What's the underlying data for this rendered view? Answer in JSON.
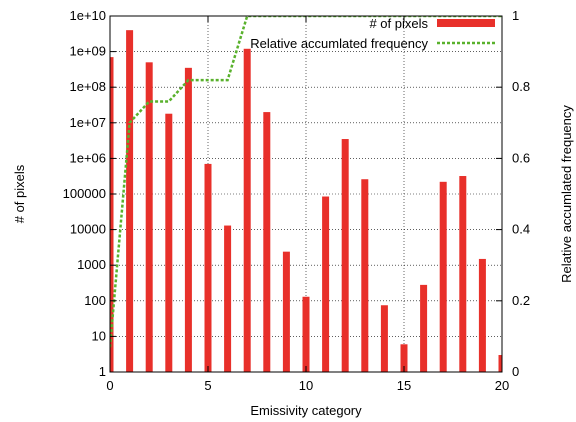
{
  "chart_data": {
    "type": "bar",
    "xlabel": "Emissivity category",
    "ylabel": "# of pixels",
    "y2label": "Relative accumlated frequency",
    "x_range": [
      0,
      20
    ],
    "x_ticks": [
      "0",
      "5",
      "10",
      "15",
      "20"
    ],
    "y_scale": "log",
    "ylim": [
      1,
      10000000000
    ],
    "y_ticks": [
      "1",
      "10",
      "100",
      "1000",
      "10000",
      "100000",
      "1e+06",
      "1e+07",
      "1e+08",
      "1e+09",
      "1e+10"
    ],
    "y2lim": [
      0,
      1
    ],
    "y2_ticks": [
      "0",
      "0.2",
      "0.4",
      "0.6",
      "0.8",
      "1"
    ],
    "grid": true,
    "legend_position": "top-right",
    "colors": {
      "bars": "#e8302a",
      "line": "#59b12c"
    },
    "series": [
      {
        "name": "# of pixels",
        "kind": "bar",
        "x": [
          0,
          1,
          2,
          3,
          4,
          5,
          6,
          7,
          8,
          9,
          10,
          11,
          12,
          13,
          14,
          15,
          16,
          17,
          18,
          19,
          20
        ],
        "values": [
          700000000,
          4000000000,
          500000000,
          18000000,
          350000000,
          700000,
          13000,
          1200000000,
          20000000,
          2400,
          130,
          85000,
          3500000,
          260000,
          75,
          6,
          280,
          220000,
          320000,
          1500,
          3
        ]
      },
      {
        "name": "Relative accumlated frequency",
        "kind": "line",
        "x": [
          0,
          1,
          2,
          3,
          4,
          5,
          6,
          7,
          8,
          9,
          10,
          11,
          12,
          13,
          14,
          15,
          16,
          17,
          18,
          19,
          20
        ],
        "values": [
          0.07,
          0.7,
          0.76,
          0.76,
          0.82,
          0.82,
          0.82,
          1.0,
          1.0,
          1.0,
          1.0,
          1.0,
          1.0,
          1.0,
          1.0,
          1.0,
          1.0,
          1.0,
          1.0,
          1.0,
          1.0
        ]
      }
    ]
  }
}
